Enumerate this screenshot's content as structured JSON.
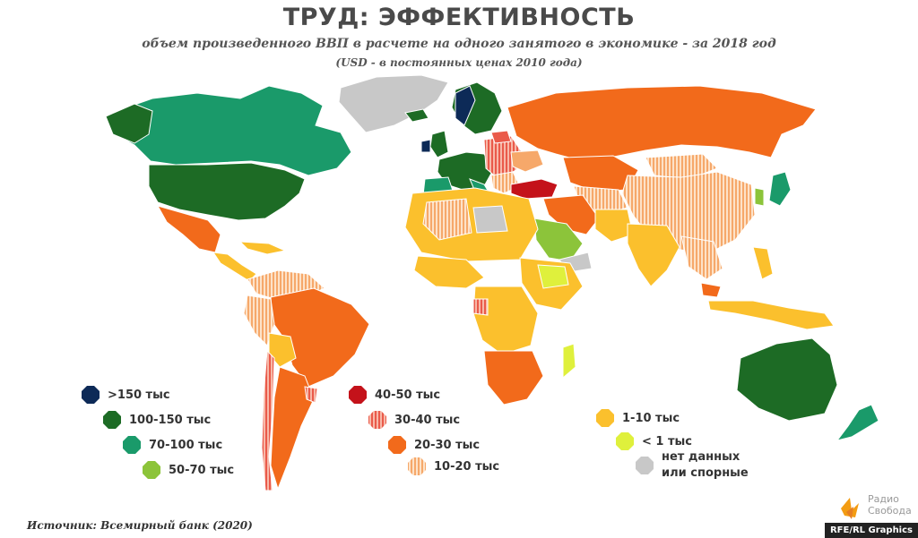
{
  "header": {
    "title": "ТРУД: ЭФФЕКТИВНОСТЬ",
    "subtitle": "объем произведенного ВВП в расчете на одного занятого в экономике - за 2018 год",
    "units": "(USD - в постоянных ценах 2010 года)"
  },
  "legend": [
    {
      "label": ">150 тыс",
      "color": "#0d2a57",
      "pattern": "solid"
    },
    {
      "label": "100-150 тыс",
      "color": "#1d6b25",
      "pattern": "solid"
    },
    {
      "label": "70-100 тыс",
      "color": "#1a9a6a",
      "pattern": "solid"
    },
    {
      "label": "50-70 тыс",
      "color": "#8cc43a",
      "pattern": "solid"
    },
    {
      "label": "40-50 тыс",
      "color": "#c4121a",
      "pattern": "solid"
    },
    {
      "label": "30-40 тыс",
      "color": "#ea5a4a",
      "pattern": "striped"
    },
    {
      "label": "20-30 тыс",
      "color": "#f26a1b",
      "pattern": "solid"
    },
    {
      "label": "10-20 тыс",
      "color": "#f6a86a",
      "pattern": "striped"
    },
    {
      "label": "1-10 тыс",
      "color": "#fbc02d",
      "pattern": "solid"
    },
    {
      "label": "< 1 тыс",
      "color": "#dff03c",
      "pattern": "solid"
    },
    {
      "label_line1": "нет данных",
      "label_line2": "или спорные",
      "color": "#c8c8c8",
      "pattern": "solid"
    }
  ],
  "footer": {
    "source": "Источник: Всемирный банк (2020)",
    "logo_text_1": "Радио",
    "logo_text_2": "Свобода",
    "credit": "RFE/RL Graphics"
  }
}
